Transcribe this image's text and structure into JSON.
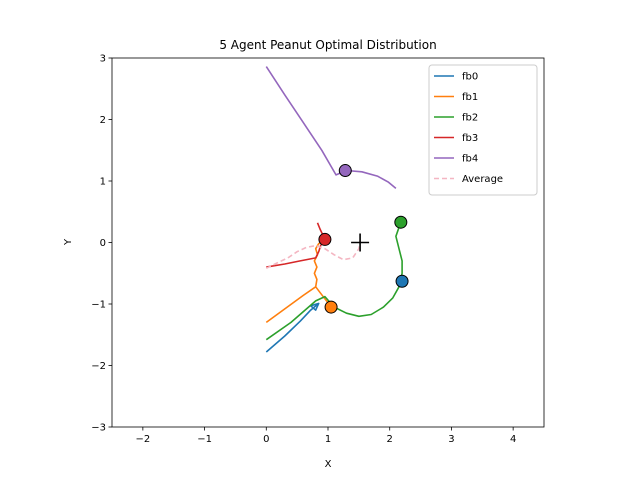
{
  "chart_data": {
    "type": "line",
    "title": "5 Agent Peanut Optimal Distribution",
    "xlabel": "X",
    "ylabel": "Y",
    "xlim": [
      -2.5,
      4.5
    ],
    "ylim": [
      -3,
      3
    ],
    "xticks": [
      "−2",
      "−1",
      "0",
      "1",
      "2",
      "3",
      "4"
    ],
    "yticks": [
      "−3",
      "−2",
      "−1",
      "0",
      "1",
      "2",
      "3"
    ],
    "xtick_values": [
      -2,
      -1,
      0,
      1,
      2,
      3,
      4
    ],
    "ytick_values": [
      -3,
      -2,
      -1,
      0,
      1,
      2,
      3
    ],
    "grid": false,
    "legend_placement": "top-right",
    "series": [
      {
        "name": "fb0",
        "color": "#1f77b4",
        "dash": "solid",
        "points": [
          [
            0,
            -1.78
          ],
          [
            0.3,
            -1.52
          ],
          [
            0.55,
            -1.28
          ],
          [
            0.72,
            -1.1
          ],
          [
            0.85,
            -0.99
          ],
          [
            0.72,
            -1.03
          ],
          [
            0.8,
            -1.1
          ],
          [
            0.85,
            -0.99
          ]
        ],
        "end_marker": [
          2.2,
          -0.63
        ]
      },
      {
        "name": "fb1",
        "color": "#ff7f0e",
        "dash": "solid",
        "points": [
          [
            0,
            -1.3
          ],
          [
            0.3,
            -1.08
          ],
          [
            0.6,
            -0.86
          ],
          [
            0.8,
            -0.72
          ],
          [
            0.82,
            -0.6
          ],
          [
            0.78,
            -0.5
          ],
          [
            0.82,
            -0.4
          ],
          [
            0.78,
            -0.3
          ],
          [
            0.83,
            -0.2
          ],
          [
            0.8,
            -0.1
          ],
          [
            0.85,
            -0.02
          ],
          [
            0.95,
            0.05
          ]
        ],
        "extra": [
          [
            0.8,
            -0.72
          ],
          [
            0.9,
            -0.85
          ],
          [
            1.0,
            -0.98
          ],
          [
            1.05,
            -1.05
          ]
        ],
        "end_marker": [
          1.05,
          -1.05
        ]
      },
      {
        "name": "fb2",
        "color": "#2ca02c",
        "dash": "solid",
        "points": [
          [
            0,
            -1.58
          ],
          [
            0.4,
            -1.3
          ],
          [
            0.8,
            -0.95
          ],
          [
            0.95,
            -0.88
          ],
          [
            1.1,
            -1.05
          ],
          [
            1.3,
            -1.15
          ],
          [
            1.5,
            -1.2
          ],
          [
            1.7,
            -1.17
          ],
          [
            1.9,
            -1.05
          ],
          [
            2.05,
            -0.9
          ],
          [
            2.15,
            -0.72
          ],
          [
            2.2,
            -0.5
          ],
          [
            2.2,
            -0.3
          ],
          [
            2.15,
            -0.1
          ],
          [
            2.1,
            0.1
          ],
          [
            2.18,
            0.33
          ]
        ],
        "end_marker": [
          2.18,
          0.33
        ]
      },
      {
        "name": "fb3",
        "color": "#d62728",
        "dash": "solid",
        "points": [
          [
            0,
            -0.4
          ],
          [
            0.3,
            -0.35
          ],
          [
            0.55,
            -0.3
          ],
          [
            0.8,
            -0.25
          ],
          [
            0.85,
            -0.15
          ],
          [
            0.88,
            -0.05
          ],
          [
            0.95,
            0.05
          ],
          [
            0.87,
            0.22
          ],
          [
            0.83,
            0.32
          ]
        ],
        "end_marker": [
          0.95,
          0.05
        ]
      },
      {
        "name": "fb4",
        "color": "#9467bd",
        "dash": "solid",
        "points": [
          [
            0,
            2.86
          ],
          [
            0.3,
            2.4
          ],
          [
            0.6,
            1.95
          ],
          [
            0.9,
            1.5
          ],
          [
            1.13,
            1.1
          ],
          [
            1.3,
            1.17
          ],
          [
            1.55,
            1.15
          ],
          [
            1.8,
            1.08
          ],
          [
            1.98,
            0.98
          ],
          [
            2.1,
            0.88
          ]
        ],
        "end_marker": [
          1.28,
          1.17
        ]
      },
      {
        "name": "Average",
        "color": "#f4b6c2",
        "dash": "dashed",
        "points": [
          [
            0,
            -0.42
          ],
          [
            0.2,
            -0.32
          ],
          [
            0.35,
            -0.25
          ],
          [
            0.5,
            -0.15
          ],
          [
            0.65,
            -0.08
          ],
          [
            0.8,
            -0.05
          ],
          [
            0.95,
            -0.1
          ],
          [
            1.1,
            -0.2
          ],
          [
            1.25,
            -0.28
          ],
          [
            1.4,
            -0.25
          ],
          [
            1.5,
            -0.1
          ],
          [
            1.52,
            0.03
          ]
        ],
        "end_marker": null
      }
    ],
    "target_marker": [
      1.52,
      0.0
    ]
  }
}
